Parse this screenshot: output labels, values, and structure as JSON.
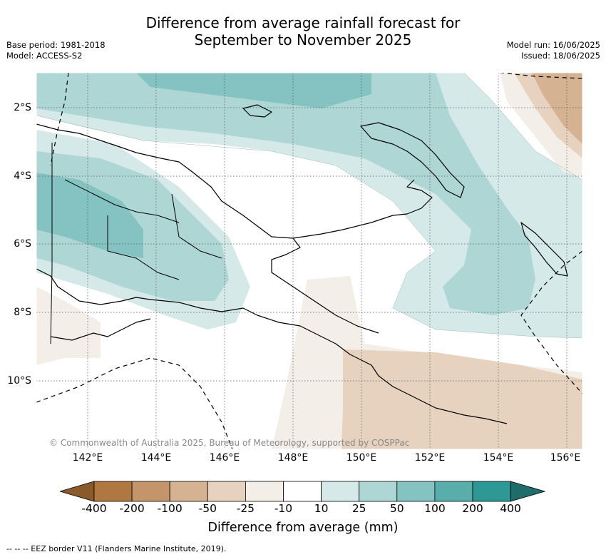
{
  "title_line1": "Difference from average rainfall forecast for",
  "title_line2": "September to November 2025",
  "meta_left": [
    "Base period: 1981-2018",
    "Model: ACCESS-S2"
  ],
  "meta_right": [
    "Model run: 16/06/2025",
    "Issued: 18/06/2025"
  ],
  "copyright": "© Commonwealth of Australia 2025, Bureau of Meteorology, supported by COSPPac",
  "lon_labels": [
    "142°E",
    "144°E",
    "146°E",
    "148°E",
    "150°E",
    "152°E",
    "154°E",
    "156°E"
  ],
  "lat_labels": [
    "2°S",
    "4°S",
    "6°S",
    "8°S",
    "10°S"
  ],
  "colorbar": {
    "title": "Difference from average (mm)",
    "ticks": [
      "-400",
      "-200",
      "-100",
      "-50",
      "-25",
      "-10",
      "10",
      "25",
      "50",
      "100",
      "200",
      "400"
    ],
    "colors": [
      "#8b5a2b",
      "#b07840",
      "#c4956a",
      "#d4b292",
      "#e6d2bf",
      "#f3eee7",
      "#ffffff",
      "#d5e9e8",
      "#add6d5",
      "#84c3c1",
      "#59adab",
      "#2e9895",
      "#1f6d6b"
    ]
  },
  "footer": "--  --  -- EEZ border V11 (Flanders Marine Institute, 2019)."
}
